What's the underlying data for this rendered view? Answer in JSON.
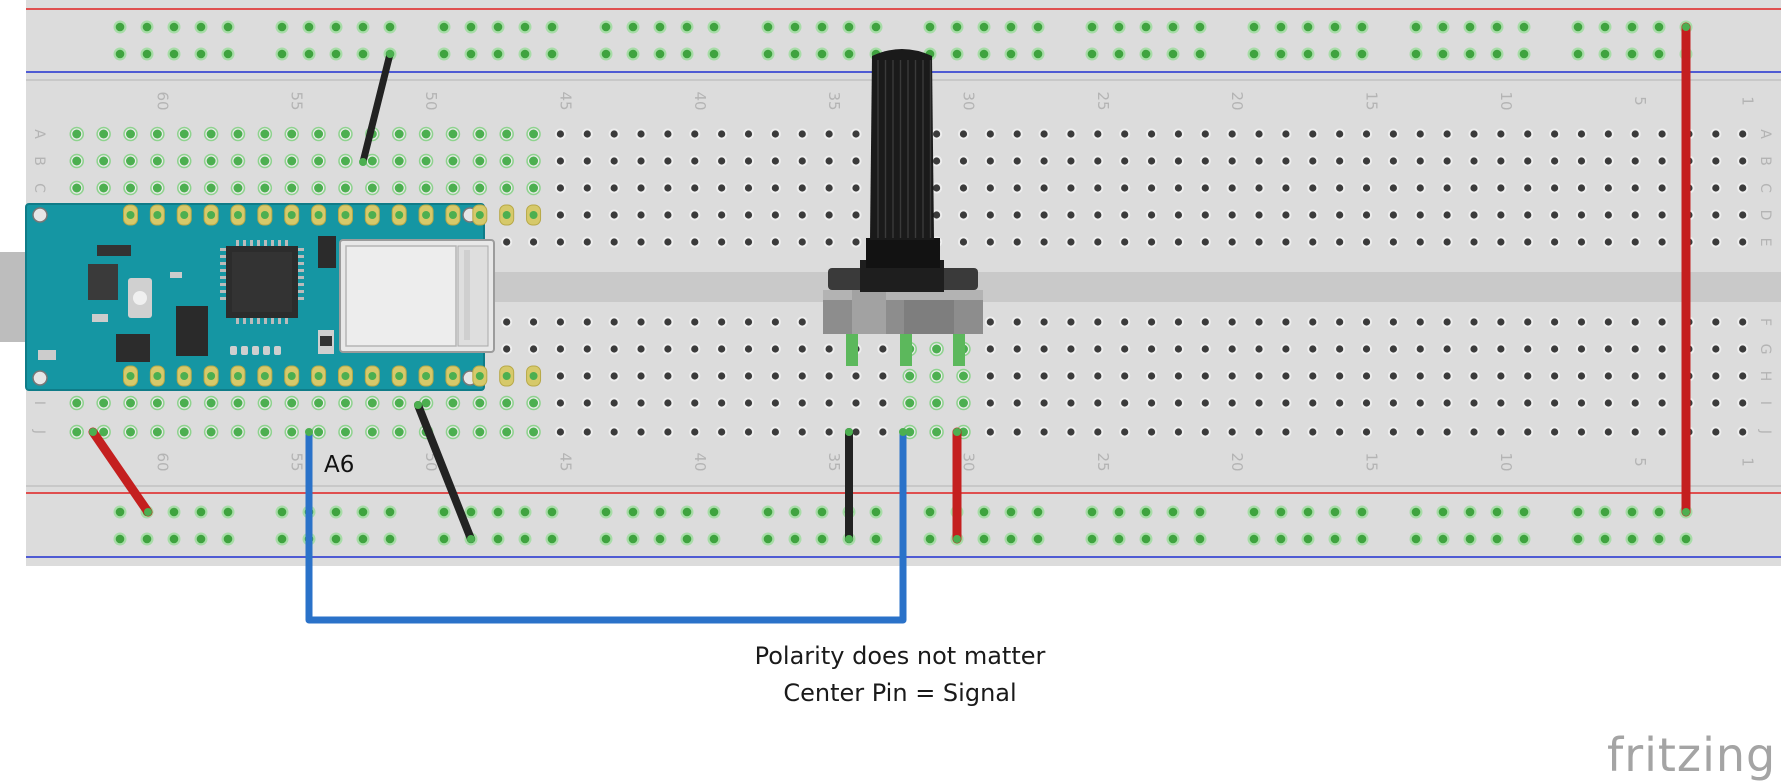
{
  "diagram": {
    "breadboard": {
      "row_labels": [
        "A",
        "B",
        "C",
        "D",
        "E",
        "F",
        "G",
        "H",
        "I",
        "J"
      ],
      "column_labels": [
        "60",
        "55",
        "50",
        "45",
        "40",
        "35",
        "30",
        "25",
        "20",
        "15",
        "10",
        "5",
        "1"
      ]
    },
    "components": {
      "microcontroller": "arduino-nano-board",
      "potentiometer": "rotary-potentiometer"
    },
    "labels": {
      "signal_pin": "A6",
      "note_line1": "Polarity does not matter",
      "note_line2": "Center Pin = Signal"
    },
    "wires": [
      {
        "name": "gnd-top-rail-wire",
        "color": "#222222"
      },
      {
        "name": "vcc-right-rail-wire",
        "color": "#cc1f1f"
      },
      {
        "name": "vcc-left-rail-wire",
        "color": "#cc1f1f"
      },
      {
        "name": "gnd-left-rail-wire",
        "color": "#222222"
      },
      {
        "name": "pot-gnd-wire",
        "color": "#222222"
      },
      {
        "name": "pot-vcc-wire",
        "color": "#cc1f1f"
      },
      {
        "name": "signal-wire",
        "color": "#2a72c9"
      }
    ],
    "watermark": "fritzing"
  }
}
